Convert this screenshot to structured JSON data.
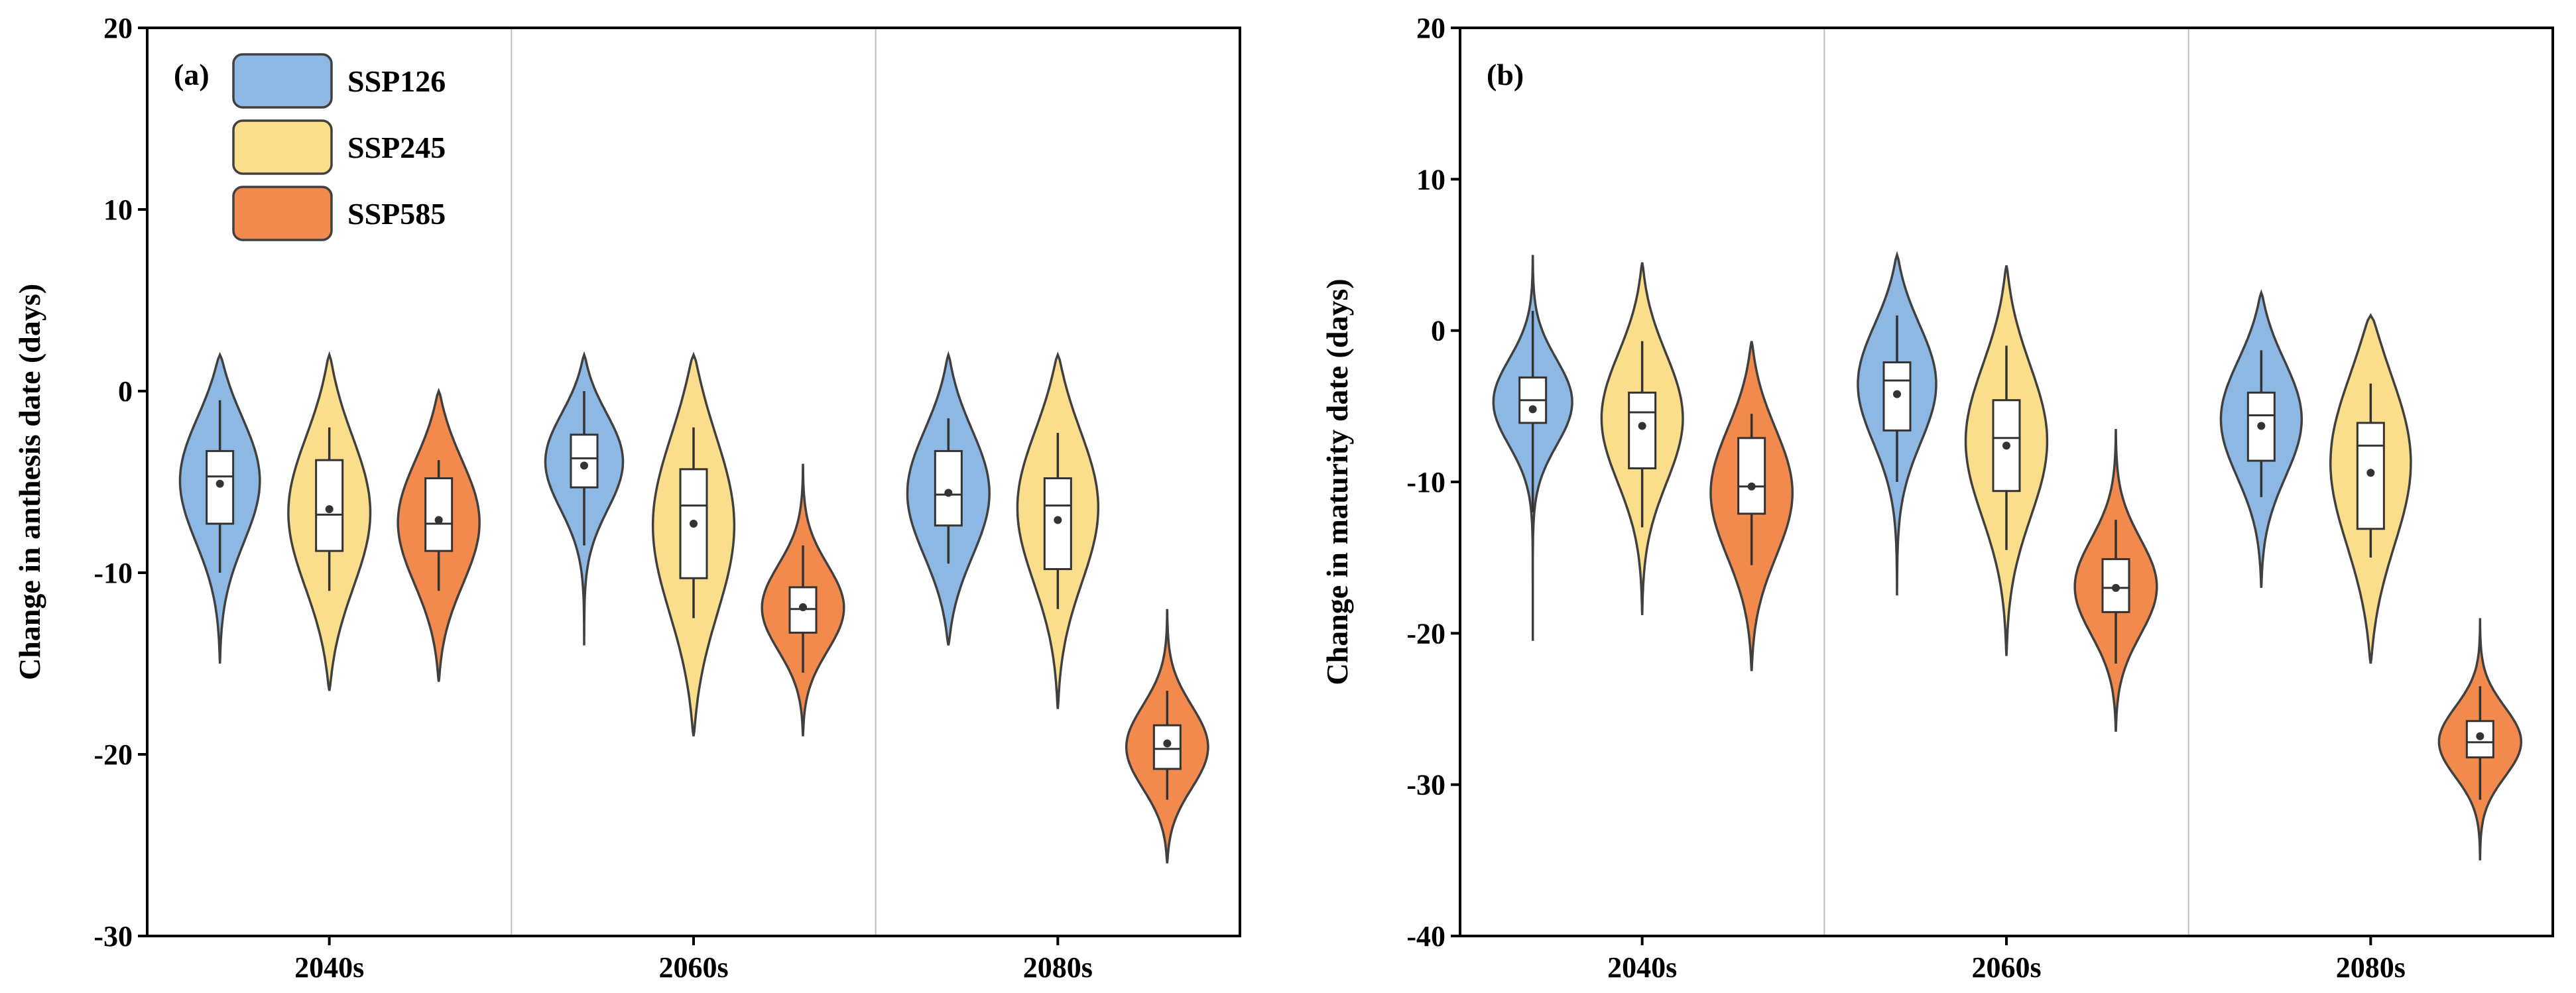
{
  "colors": {
    "SSP126": "#8DB8E3",
    "SSP245": "#FBDE8C",
    "SSP585": "#F28A4E",
    "outline": "#404040"
  },
  "chart_data": [
    {
      "panel_label": "(a)",
      "type": "violin",
      "ylabel": "Change in anthesis date (days)",
      "xlabel": "",
      "ylim": [
        -30,
        20
      ],
      "yticks": [
        -30,
        -20,
        -10,
        0,
        10,
        20
      ],
      "categories": [
        "2040s",
        "2060s",
        "2080s"
      ],
      "legend": {
        "position": "top-left",
        "entries": [
          "SSP126",
          "SSP245",
          "SSP585"
        ]
      },
      "series": [
        {
          "name": "SSP126",
          "groups": [
            {
              "category": "2040s",
              "min": -15,
              "max": 2,
              "whisker_low": -10,
              "whisker_high": -0.5,
              "q1": -7.3,
              "median": -4.7,
              "q3": -3.3,
              "mean": -5.1,
              "peak": -4.5
            },
            {
              "category": "2060s",
              "min": -14,
              "max": 2,
              "whisker_low": -8.5,
              "whisker_high": 0,
              "q1": -5.3,
              "median": -3.7,
              "q3": -2.4,
              "mean": -4.1,
              "peak": -3.5
            },
            {
              "category": "2080s",
              "min": -14,
              "max": 2,
              "whisker_low": -9.5,
              "whisker_high": -1.5,
              "q1": -7.4,
              "median": -5.7,
              "q3": -3.3,
              "mean": -5.6,
              "peak": -5.5
            }
          ]
        },
        {
          "name": "SSP245",
          "groups": [
            {
              "category": "2040s",
              "min": -16.5,
              "max": 2,
              "whisker_low": -11,
              "whisker_high": -2,
              "q1": -8.8,
              "median": -6.8,
              "q3": -3.8,
              "mean": -6.5,
              "peak": -6.5
            },
            {
              "category": "2060s",
              "min": -19,
              "max": 2,
              "whisker_low": -12.5,
              "whisker_high": -2,
              "q1": -10.3,
              "median": -6.3,
              "q3": -4.3,
              "mean": -7.3,
              "peak": -7
            },
            {
              "category": "2080s",
              "min": -17.5,
              "max": 2,
              "whisker_low": -12,
              "whisker_high": -2.3,
              "q1": -9.8,
              "median": -6.3,
              "q3": -4.8,
              "mean": -7.1,
              "peak": -6
            }
          ]
        },
        {
          "name": "SSP585",
          "groups": [
            {
              "category": "2040s",
              "min": -16,
              "max": 0,
              "whisker_low": -11,
              "whisker_high": -3.8,
              "q1": -8.8,
              "median": -7.3,
              "q3": -4.8,
              "mean": -7.1,
              "peak": -7
            },
            {
              "category": "2060s",
              "min": -19,
              "max": -4,
              "whisker_low": -15.5,
              "whisker_high": -8.5,
              "q1": -13.3,
              "median": -12,
              "q3": -10.8,
              "mean": -11.9,
              "peak": -12
            },
            {
              "category": "2080s",
              "min": -26,
              "max": -12,
              "whisker_low": -22.5,
              "whisker_high": -16.5,
              "q1": -20.8,
              "median": -19.7,
              "q3": -18.4,
              "mean": -19.4,
              "peak": -19.7
            }
          ]
        }
      ]
    },
    {
      "panel_label": "(b)",
      "type": "violin",
      "ylabel": "Change in maturity date (days)",
      "xlabel": "",
      "ylim": [
        -40,
        20
      ],
      "yticks": [
        -40,
        -30,
        -20,
        -10,
        0,
        10,
        20
      ],
      "categories": [
        "2040s",
        "2060s",
        "2080s"
      ],
      "series": [
        {
          "name": "SSP126",
          "groups": [
            {
              "category": "2040s",
              "min": -20.5,
              "max": 5,
              "whisker_low": -12,
              "whisker_high": 1.3,
              "q1": -6.1,
              "median": -4.6,
              "q3": -3.1,
              "mean": -5.2,
              "peak": -4.5
            },
            {
              "category": "2060s",
              "min": -17.5,
              "max": 5,
              "whisker_low": -10,
              "whisker_high": 1,
              "q1": -6.6,
              "median": -3.3,
              "q3": -2.1,
              "mean": -4.2,
              "peak": -3
            },
            {
              "category": "2080s",
              "min": -17,
              "max": 2.5,
              "whisker_low": -11,
              "whisker_high": -1.3,
              "q1": -8.6,
              "median": -5.6,
              "q3": -4.1,
              "mean": -6.3,
              "peak": -5.5
            }
          ]
        },
        {
          "name": "SSP245",
          "groups": [
            {
              "category": "2040s",
              "min": -18.8,
              "max": 4.5,
              "whisker_low": -13,
              "whisker_high": -0.7,
              "q1": -9.1,
              "median": -5.4,
              "q3": -4.1,
              "mean": -6.3,
              "peak": -5.5
            },
            {
              "category": "2060s",
              "min": -21.5,
              "max": 4.3,
              "whisker_low": -14.5,
              "whisker_high": -1,
              "q1": -10.6,
              "median": -7.1,
              "q3": -4.6,
              "mean": -7.6,
              "peak": -7
            },
            {
              "category": "2080s",
              "min": -22,
              "max": 1,
              "whisker_low": -15,
              "whisker_high": -3.5,
              "q1": -13.1,
              "median": -7.6,
              "q3": -6.1,
              "mean": -9.4,
              "peak": -8
            }
          ]
        },
        {
          "name": "SSP585",
          "groups": [
            {
              "category": "2040s",
              "min": -22.5,
              "max": -0.7,
              "whisker_low": -15.5,
              "whisker_high": -5.5,
              "q1": -12.1,
              "median": -10.3,
              "q3": -7.1,
              "mean": -10.3,
              "peak": -10.5
            },
            {
              "category": "2060s",
              "min": -26.5,
              "max": -6.5,
              "whisker_low": -22,
              "whisker_high": -12.5,
              "q1": -18.6,
              "median": -17,
              "q3": -15.1,
              "mean": -17,
              "peak": -17
            },
            {
              "category": "2080s",
              "min": -35,
              "max": -19,
              "whisker_low": -31,
              "whisker_high": -23.5,
              "q1": -28.2,
              "median": -27.2,
              "q3": -25.8,
              "mean": -26.8,
              "peak": -27.2
            }
          ]
        }
      ]
    }
  ]
}
